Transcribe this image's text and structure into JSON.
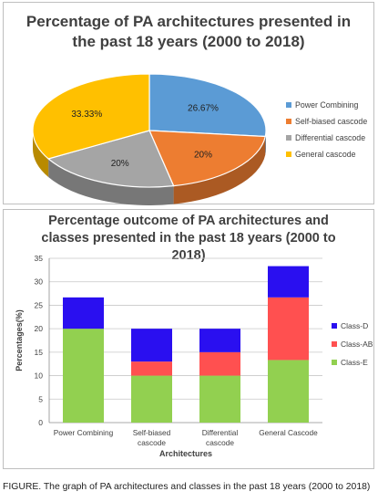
{
  "caption": "FIGURE. The graph of PA architectures and classes in the past 18 years (2000 to 2018)",
  "chart_data": [
    {
      "type": "pie",
      "title_lines": [
        "Percentage of PA architectures presented in",
        "the past 18 years (2000 to 2018)"
      ],
      "slices": [
        {
          "label": "Power Combining",
          "value": 26.67,
          "data_label": "26.67%",
          "color": "#5b9bd5"
        },
        {
          "label": "Self-biased cascode",
          "value": 20,
          "data_label": "20%",
          "color": "#ed7d31"
        },
        {
          "label": "Differential cascode",
          "value": 20,
          "data_label": "20%",
          "color": "#a5a5a5"
        },
        {
          "label": "General cascode",
          "value": 33.33,
          "data_label": "33.33%",
          "color": "#ffc000"
        }
      ],
      "legend_position": "right",
      "style": "3d"
    },
    {
      "type": "bar",
      "stacked": true,
      "title_lines": [
        "Percentage outcome of PA architectures and",
        "classes presented in the past 18 years (2000 to",
        "2018)"
      ],
      "categories": [
        [
          "Power Combining"
        ],
        [
          "Self-biased",
          "cascode"
        ],
        [
          "Differential",
          "cascode"
        ],
        [
          "General Cascode"
        ]
      ],
      "series": [
        {
          "name": "Class-E",
          "values": [
            20,
            10,
            10,
            13.33
          ],
          "color": "#92d050"
        },
        {
          "name": "Class-AB",
          "values": [
            0,
            3,
            5,
            13.34
          ],
          "color": "#ff5050"
        },
        {
          "name": "Class-D",
          "values": [
            6.67,
            7,
            5,
            6.66
          ],
          "color": "#2a0ff0"
        }
      ],
      "legend_order": [
        "Class-D",
        "Class-AB",
        "Class-E"
      ],
      "xlabel": "Architectures",
      "ylabel": "Percentages(%)",
      "ylim": [
        0,
        35
      ],
      "yticks": [
        "0",
        "5",
        "10",
        "15",
        "20",
        "25",
        "30",
        "35"
      ],
      "grid": true,
      "legend_position": "right"
    }
  ]
}
